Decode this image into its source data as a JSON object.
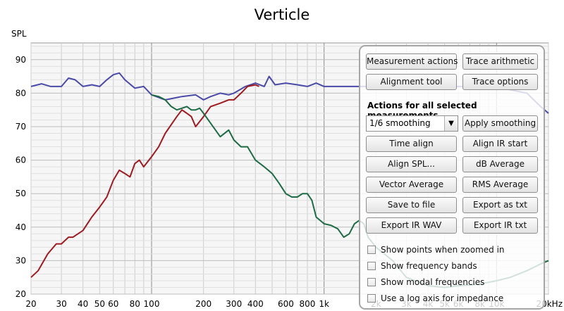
{
  "title": "Verticle",
  "chart_data": {
    "type": "line",
    "ylabel": "SPL",
    "x_scale": "log",
    "xlim": [
      20,
      20000
    ],
    "ylim": [
      20,
      95
    ],
    "x_ticks": [
      {
        "v": 20,
        "label": "20"
      },
      {
        "v": 30,
        "label": "30"
      },
      {
        "v": 40,
        "label": "40"
      },
      {
        "v": 50,
        "label": "50"
      },
      {
        "v": 60,
        "label": "60"
      },
      {
        "v": 80,
        "label": "80"
      },
      {
        "v": 100,
        "label": "100"
      },
      {
        "v": 200,
        "label": "200"
      },
      {
        "v": 300,
        "label": "300"
      },
      {
        "v": 400,
        "label": "400"
      },
      {
        "v": 600,
        "label": "600"
      },
      {
        "v": 800,
        "label": "800"
      },
      {
        "v": 1000,
        "label": "1k"
      },
      {
        "v": 2000,
        "label": "2k"
      },
      {
        "v": 3000,
        "label": "3k"
      },
      {
        "v": 4000,
        "label": "4k"
      },
      {
        "v": 5000,
        "label": "5k"
      },
      {
        "v": 6000,
        "label": "6k"
      },
      {
        "v": 8000,
        "label": "8k"
      },
      {
        "v": 10000,
        "label": "10k"
      },
      {
        "v": 20000,
        "label": "20kHz"
      }
    ],
    "y_ticks": [
      20,
      30,
      40,
      50,
      60,
      70,
      80,
      90
    ],
    "grid": true,
    "series": [
      {
        "color": "#4a4aa8",
        "points": [
          [
            20,
            82
          ],
          [
            23,
            82.8
          ],
          [
            26,
            82
          ],
          [
            30,
            82
          ],
          [
            33,
            84.5
          ],
          [
            36,
            84
          ],
          [
            40,
            82
          ],
          [
            45,
            82.5
          ],
          [
            50,
            82
          ],
          [
            55,
            84
          ],
          [
            60,
            85.5
          ],
          [
            65,
            86
          ],
          [
            70,
            84
          ],
          [
            80,
            81.5
          ],
          [
            90,
            82
          ],
          [
            100,
            79.5
          ],
          [
            120,
            78
          ],
          [
            150,
            79
          ],
          [
            180,
            79.5
          ],
          [
            200,
            78
          ],
          [
            220,
            79
          ],
          [
            250,
            80
          ],
          [
            280,
            79.5
          ],
          [
            300,
            80
          ],
          [
            350,
            82
          ],
          [
            400,
            83
          ],
          [
            450,
            82
          ],
          [
            480,
            85
          ],
          [
            520,
            82.5
          ],
          [
            600,
            83
          ],
          [
            700,
            82.5
          ],
          [
            800,
            82
          ],
          [
            900,
            83
          ],
          [
            1000,
            82
          ],
          [
            1200,
            82
          ],
          [
            1500,
            82
          ],
          [
            2000,
            82
          ],
          [
            3000,
            82
          ],
          [
            4000,
            83
          ],
          [
            5000,
            82
          ],
          [
            6000,
            82
          ],
          [
            7000,
            82
          ],
          [
            8000,
            82
          ],
          [
            10000,
            82
          ],
          [
            12000,
            81
          ],
          [
            15000,
            80
          ],
          [
            18000,
            76
          ],
          [
            20000,
            74
          ]
        ]
      },
      {
        "color": "#9e1b20",
        "points": [
          [
            20,
            25
          ],
          [
            22,
            27
          ],
          [
            25,
            32
          ],
          [
            28,
            35
          ],
          [
            30,
            35
          ],
          [
            33,
            37
          ],
          [
            35,
            37
          ],
          [
            40,
            39
          ],
          [
            45,
            43
          ],
          [
            50,
            46
          ],
          [
            55,
            49
          ],
          [
            60,
            54
          ],
          [
            65,
            57
          ],
          [
            70,
            56
          ],
          [
            75,
            55
          ],
          [
            80,
            59
          ],
          [
            85,
            60
          ],
          [
            90,
            58
          ],
          [
            100,
            61
          ],
          [
            110,
            64
          ],
          [
            120,
            68
          ],
          [
            140,
            73
          ],
          [
            150,
            75
          ],
          [
            160,
            74
          ],
          [
            170,
            73
          ],
          [
            180,
            70
          ],
          [
            200,
            73
          ],
          [
            220,
            76
          ],
          [
            250,
            77
          ],
          [
            280,
            78
          ],
          [
            300,
            78
          ],
          [
            330,
            80
          ],
          [
            360,
            82
          ],
          [
            400,
            82.5
          ],
          [
            420,
            82
          ]
        ]
      },
      {
        "color": "#1e6b45",
        "points": [
          [
            100,
            79.5
          ],
          [
            110,
            79
          ],
          [
            120,
            78
          ],
          [
            130,
            76
          ],
          [
            140,
            75
          ],
          [
            150,
            75.5
          ],
          [
            160,
            76
          ],
          [
            170,
            75
          ],
          [
            180,
            75
          ],
          [
            190,
            75.5
          ],
          [
            200,
            74
          ],
          [
            220,
            71
          ],
          [
            250,
            67
          ],
          [
            280,
            69
          ],
          [
            300,
            66
          ],
          [
            330,
            64
          ],
          [
            360,
            64
          ],
          [
            400,
            60
          ],
          [
            450,
            58
          ],
          [
            500,
            56
          ],
          [
            550,
            53
          ],
          [
            600,
            50
          ],
          [
            650,
            49
          ],
          [
            700,
            49
          ],
          [
            750,
            50
          ],
          [
            800,
            50
          ],
          [
            850,
            48
          ],
          [
            900,
            43
          ],
          [
            1000,
            41
          ],
          [
            1100,
            40.5
          ],
          [
            1200,
            39.5
          ],
          [
            1300,
            37
          ],
          [
            1400,
            38
          ],
          [
            1500,
            41
          ],
          [
            1600,
            42
          ],
          [
            1700,
            41
          ],
          [
            1800,
            37
          ],
          [
            2000,
            34
          ],
          [
            2500,
            30
          ],
          [
            3000,
            25
          ],
          [
            4000,
            22.5
          ],
          [
            5000,
            22
          ],
          [
            6000,
            22.5
          ],
          [
            8000,
            23
          ],
          [
            10000,
            24
          ],
          [
            12000,
            25
          ],
          [
            15000,
            27
          ],
          [
            18000,
            29
          ],
          [
            20000,
            30
          ]
        ]
      }
    ]
  },
  "panel": {
    "buttons_top": [
      {
        "label": "Measurement actions",
        "name": "measurement-actions-button"
      },
      {
        "label": "Trace arithmetic",
        "name": "trace-arithmetic-button"
      },
      {
        "label": "Alignment tool",
        "name": "alignment-tool-button"
      },
      {
        "label": "Trace options",
        "name": "trace-options-button"
      }
    ],
    "section_label": "Actions for all selected measurements",
    "smoothing_select": "1/6 smoothing",
    "apply_smoothing": "Apply smoothing",
    "buttons_grid": [
      {
        "label": "Time align",
        "name": "time-align-button"
      },
      {
        "label": "Align IR start",
        "name": "align-ir-start-button"
      },
      {
        "label": "Align SPL...",
        "name": "align-spl-button"
      },
      {
        "label": "dB Average",
        "name": "db-average-button"
      },
      {
        "label": "Vector Average",
        "name": "vector-average-button"
      },
      {
        "label": "RMS Average",
        "name": "rms-average-button"
      },
      {
        "label": "Save to file",
        "name": "save-to-file-button"
      },
      {
        "label": "Export as txt",
        "name": "export-as-txt-button"
      },
      {
        "label": "Export IR WAV",
        "name": "export-ir-wav-button"
      },
      {
        "label": "Export IR txt",
        "name": "export-ir-txt-button"
      }
    ],
    "checkboxes": [
      {
        "label": "Show points when zoomed in",
        "name": "show-points-checkbox"
      },
      {
        "label": "Show frequency bands",
        "name": "show-frequency-bands-checkbox"
      },
      {
        "label": "Show modal frequencies",
        "name": "show-modal-frequencies-checkbox"
      },
      {
        "label": "Use a log axis for impedance",
        "name": "log-axis-impedance-checkbox"
      }
    ]
  }
}
